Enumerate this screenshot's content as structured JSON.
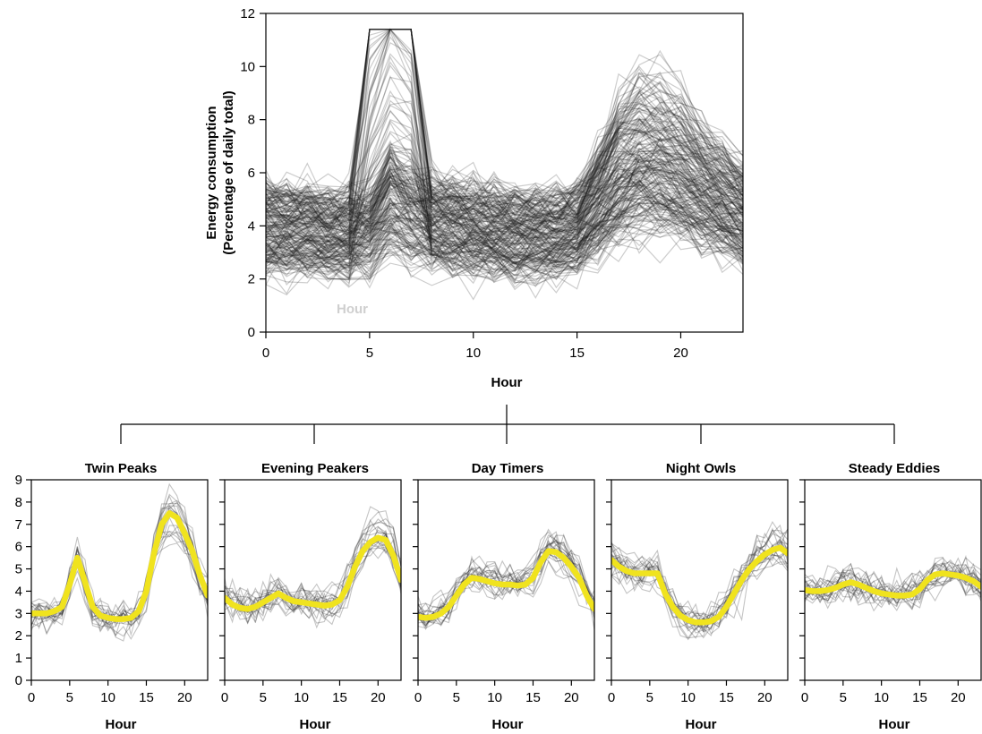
{
  "chart_data": [
    {
      "type": "line",
      "title": "",
      "xlabel": "Hour",
      "ylabel": [
        "Energy consumption",
        "(Percentage of daily total)"
      ],
      "xlim": [
        0,
        23
      ],
      "ylim": [
        0,
        12
      ],
      "xticks": [
        0,
        5,
        10,
        15,
        20
      ],
      "yticks": [
        0,
        2,
        4,
        6,
        8,
        10,
        12
      ],
      "overlay_text": "Hour",
      "trace_color": "#1a1a1a",
      "trace_count": 220,
      "x": [
        0,
        1,
        2,
        3,
        4,
        5,
        6,
        7,
        8,
        9,
        10,
        11,
        12,
        13,
        14,
        15,
        16,
        17,
        18,
        19,
        20,
        21,
        22,
        23
      ],
      "series": [
        {
          "values": [
            3.8,
            3.7,
            3.7,
            3.6,
            3.6,
            3.7,
            4.8,
            4.3,
            4.0,
            3.9,
            3.8,
            3.7,
            3.6,
            3.6,
            3.6,
            3.8,
            4.6,
            5.6,
            6.0,
            5.9,
            5.6,
            5.1,
            4.7,
            4.3
          ]
        }
      ]
    },
    {
      "type": "line",
      "title": "Twin Peaks",
      "xlabel": "Hour",
      "xlim": [
        0,
        23
      ],
      "ylim": [
        0,
        9
      ],
      "xticks": [
        0,
        5,
        10,
        15,
        20
      ],
      "yticks": [
        0,
        1,
        2,
        3,
        4,
        5,
        6,
        7,
        8,
        9
      ],
      "x": [
        0,
        1,
        2,
        3,
        4,
        5,
        6,
        7,
        8,
        9,
        10,
        11,
        12,
        13,
        14,
        15,
        16,
        17,
        18,
        19,
        20,
        21,
        22,
        23
      ],
      "series": [
        {
          "values": [
            3.0,
            3.0,
            3.0,
            3.1,
            3.3,
            4.3,
            5.5,
            4.4,
            3.3,
            2.9,
            2.8,
            2.75,
            2.75,
            2.8,
            3.1,
            4.0,
            5.7,
            7.0,
            7.5,
            7.3,
            6.6,
            5.8,
            4.7,
            3.8
          ],
          "color": "#f0e31e"
        }
      ]
    },
    {
      "type": "line",
      "title": "Evening Peakers",
      "xlabel": "Hour",
      "xlim": [
        0,
        23
      ],
      "ylim": [
        0,
        9
      ],
      "xticks": [
        0,
        5,
        10,
        15,
        20
      ],
      "x": [
        0,
        1,
        2,
        3,
        4,
        5,
        6,
        7,
        8,
        9,
        10,
        11,
        12,
        13,
        14,
        15,
        16,
        17,
        18,
        19,
        20,
        21,
        22,
        23
      ],
      "series": [
        {
          "values": [
            3.7,
            3.4,
            3.25,
            3.2,
            3.3,
            3.5,
            3.7,
            3.9,
            3.7,
            3.55,
            3.5,
            3.45,
            3.4,
            3.35,
            3.4,
            3.6,
            4.2,
            5.1,
            5.8,
            6.2,
            6.4,
            6.3,
            5.6,
            4.5
          ],
          "color": "#f0e31e"
        }
      ]
    },
    {
      "type": "line",
      "title": "Day Timers",
      "xlabel": "Hour",
      "xlim": [
        0,
        23
      ],
      "ylim": [
        0,
        9
      ],
      "xticks": [
        0,
        5,
        10,
        15,
        20
      ],
      "x": [
        0,
        1,
        2,
        3,
        4,
        5,
        6,
        7,
        8,
        9,
        10,
        11,
        12,
        13,
        14,
        15,
        16,
        17,
        18,
        19,
        20,
        21,
        22,
        23
      ],
      "series": [
        {
          "values": [
            2.85,
            2.8,
            2.85,
            3.0,
            3.3,
            3.8,
            4.3,
            4.6,
            4.55,
            4.45,
            4.35,
            4.3,
            4.3,
            4.25,
            4.3,
            4.6,
            5.3,
            5.8,
            5.75,
            5.5,
            5.1,
            4.6,
            3.8,
            3.2
          ],
          "color": "#f0e31e"
        }
      ]
    },
    {
      "type": "line",
      "title": "Night Owls",
      "xlabel": "Hour",
      "xlim": [
        0,
        23
      ],
      "ylim": [
        0,
        9
      ],
      "xticks": [
        0,
        5,
        10,
        15,
        20
      ],
      "x": [
        0,
        1,
        2,
        3,
        4,
        5,
        6,
        7,
        8,
        9,
        10,
        11,
        12,
        13,
        14,
        15,
        16,
        17,
        18,
        19,
        20,
        21,
        22,
        23
      ],
      "series": [
        {
          "values": [
            5.4,
            5.1,
            4.9,
            4.8,
            4.8,
            4.8,
            4.8,
            3.9,
            3.3,
            2.9,
            2.7,
            2.6,
            2.6,
            2.65,
            2.85,
            3.3,
            3.9,
            4.5,
            5.0,
            5.35,
            5.65,
            5.85,
            5.95,
            5.7
          ],
          "color": "#f0e31e"
        }
      ]
    },
    {
      "type": "line",
      "title": "Steady Eddies",
      "xlabel": "Hour",
      "xlim": [
        0,
        23
      ],
      "ylim": [
        0,
        9
      ],
      "xticks": [
        0,
        5,
        10,
        15,
        20
      ],
      "x": [
        0,
        1,
        2,
        3,
        4,
        5,
        6,
        7,
        8,
        9,
        10,
        11,
        12,
        13,
        14,
        15,
        16,
        17,
        18,
        19,
        20,
        21,
        22,
        23
      ],
      "series": [
        {
          "values": [
            4.05,
            4.0,
            4.0,
            4.05,
            4.15,
            4.3,
            4.4,
            4.3,
            4.15,
            4.0,
            3.9,
            3.85,
            3.8,
            3.8,
            3.85,
            4.1,
            4.5,
            4.75,
            4.8,
            4.75,
            4.7,
            4.6,
            4.45,
            4.2
          ],
          "color": "#f0e31e"
        }
      ]
    }
  ]
}
